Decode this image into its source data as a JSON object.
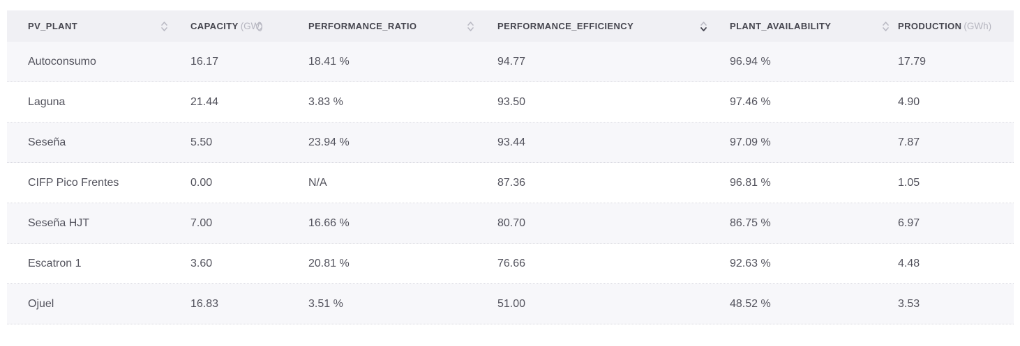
{
  "table": {
    "columns": [
      {
        "key": "pv_plant",
        "label": "PV_PLANT",
        "unit": "",
        "sort": "none"
      },
      {
        "key": "capacity",
        "label": "CAPACITY",
        "unit": "(GW)",
        "sort": "none"
      },
      {
        "key": "performance_ratio",
        "label": "PERFORMANCE_RATIO",
        "unit": "",
        "sort": "none"
      },
      {
        "key": "performance_efficiency",
        "label": "PERFORMANCE_EFFICIENCY",
        "unit": "",
        "sort": "desc"
      },
      {
        "key": "plant_availability",
        "label": "PLANT_AVAILABILITY",
        "unit": "",
        "sort": "none"
      },
      {
        "key": "production",
        "label": "PRODUCTION",
        "unit": "(GWh)",
        "sort": "hidden"
      }
    ],
    "rows": [
      [
        "Autoconsumo",
        "16.17",
        "18.41 %",
        "94.77",
        "96.94 %",
        "17.79"
      ],
      [
        "Laguna",
        "21.44",
        "3.83 %",
        "93.50",
        "97.46 %",
        "4.90"
      ],
      [
        "Seseña",
        "5.50",
        "23.94 %",
        "93.44",
        "97.09 %",
        "7.87"
      ],
      [
        "CIFP Pico Frentes",
        "0.00",
        "N/A",
        "87.36",
        "96.81 %",
        "1.05"
      ],
      [
        "Seseña HJT",
        "7.00",
        "16.66 %",
        "80.70",
        "86.75 %",
        "6.97"
      ],
      [
        "Escatron 1",
        "3.60",
        "20.81 %",
        "76.66",
        "92.63 %",
        "4.48"
      ],
      [
        "Ojuel",
        "16.83",
        "3.51 %",
        "51.00",
        "48.52 %",
        "3.53"
      ]
    ]
  },
  "colors": {
    "header_bg": "#f0f0f4",
    "row_stripe": "#f7f7fa",
    "header_text": "#46464f",
    "unit_text": "#b5b5bf",
    "cell_text": "#53535d",
    "divider": "#d9d9e0",
    "sort_inactive": "#b9b9c3",
    "sort_active": "#474752"
  }
}
